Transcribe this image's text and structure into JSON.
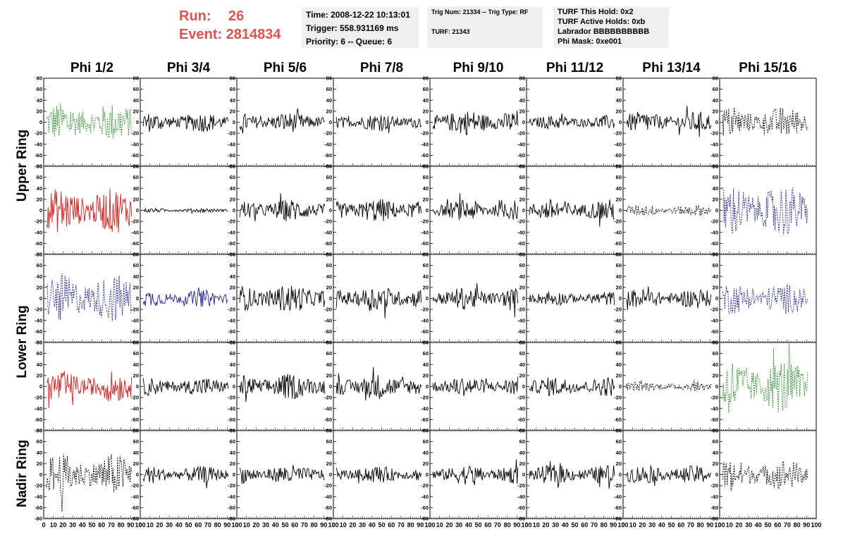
{
  "header": {
    "run_label": "Run:",
    "run_value": "26",
    "event_label": "Event:",
    "event_value": "2814834",
    "time_line": "Time: 2008-12-22 10:13:01",
    "trigger_line": "Trigger: 558.931169 ms",
    "priority_line": "Priority: 6 -- Queue: 6",
    "trig_num_line": "Trig Num: 21334 -- Trig Type: RF",
    "turf_line": "TURF: 21343",
    "turf_hold_line": "TURF This Hold: 0x2",
    "turf_active_line": "TURF Active Holds: 0xb",
    "labrador_line": "Labrador BBBBBBBBBB",
    "phi_mask_line": "Phi Mask: 0xe001"
  },
  "columns": [
    "Phi 1/2",
    "Phi 3/4",
    "Phi 5/6",
    "Phi 7/8",
    "Phi 9/10",
    "Phi 11/12",
    "Phi 13/14",
    "Phi 15/16"
  ],
  "row_groups": [
    "Upper Ring",
    "Lower Ring",
    "Nadir Ring"
  ],
  "colors": {
    "black": "#000000",
    "green": "#2e8b2e",
    "red": "#cc2222",
    "blue": "#22228b"
  },
  "chart_data": {
    "type": "line",
    "description_units": "waveform amplitude vs sample",
    "x_range": [
      0,
      100
    ],
    "y_range": [
      -80,
      80
    ],
    "y_ticks": [
      -80,
      -60,
      -40,
      -20,
      0,
      20,
      40,
      60,
      80
    ],
    "x_ticks": [
      0,
      10,
      20,
      30,
      40,
      50,
      60,
      70,
      80,
      90,
      100
    ],
    "panels": [
      [
        {
          "color": "green",
          "style": "dashed",
          "amp": 28
        },
        {
          "color": "black",
          "style": "solid",
          "amp": 14
        },
        {
          "color": "black",
          "style": "solid",
          "amp": 14
        },
        {
          "color": "black",
          "style": "solid",
          "amp": 12
        },
        {
          "color": "black",
          "style": "solid",
          "amp": 18
        },
        {
          "color": "black",
          "style": "solid",
          "amp": 10
        },
        {
          "color": "black",
          "style": "solid",
          "amp": 15
        },
        {
          "color": "black",
          "style": "dashed",
          "amp": 22
        }
      ],
      [
        {
          "color": "red",
          "style": "solid",
          "amp": 32
        },
        {
          "color": "black",
          "style": "solid",
          "amp": 3
        },
        {
          "color": "black",
          "style": "solid",
          "amp": 16
        },
        {
          "color": "black",
          "style": "solid",
          "amp": 17
        },
        {
          "color": "black",
          "style": "solid",
          "amp": 15
        },
        {
          "color": "black",
          "style": "solid",
          "amp": 16
        },
        {
          "color": "black",
          "style": "dashed",
          "amp": 8
        },
        {
          "color": "blue",
          "style": "dashed",
          "amp": 38
        }
      ],
      [
        {
          "color": "blue",
          "style": "dashed",
          "amp": 35
        },
        {
          "color": "blue",
          "style": "solid",
          "amp": 12
        },
        {
          "color": "black",
          "style": "solid",
          "amp": 20
        },
        {
          "color": "black",
          "style": "solid",
          "amp": 18
        },
        {
          "color": "black",
          "style": "solid",
          "amp": 16
        },
        {
          "color": "black",
          "style": "solid",
          "amp": 10
        },
        {
          "color": "black",
          "style": "solid",
          "amp": 14
        },
        {
          "color": "blue",
          "style": "dashed",
          "amp": 22
        }
      ],
      [
        {
          "color": "red",
          "style": "solid",
          "amp": 22
        },
        {
          "color": "black",
          "style": "solid",
          "amp": 13
        },
        {
          "color": "black",
          "style": "solid",
          "amp": 18
        },
        {
          "color": "black",
          "style": "solid",
          "amp": 18
        },
        {
          "color": "black",
          "style": "solid",
          "amp": 14
        },
        {
          "color": "black",
          "style": "solid",
          "amp": 14
        },
        {
          "color": "black",
          "style": "dashed",
          "amp": 7
        },
        {
          "color": "green",
          "style": "dashed",
          "amp": 40
        }
      ],
      [
        {
          "color": "black",
          "style": "dashed",
          "amp": 30
        },
        {
          "color": "black",
          "style": "solid",
          "amp": 12
        },
        {
          "color": "black",
          "style": "solid",
          "amp": 14
        },
        {
          "color": "black",
          "style": "solid",
          "amp": 12
        },
        {
          "color": "black",
          "style": "solid",
          "amp": 14
        },
        {
          "color": "black",
          "style": "solid",
          "amp": 14
        },
        {
          "color": "black",
          "style": "solid",
          "amp": 13
        },
        {
          "color": "black",
          "style": "dashed",
          "amp": 22
        }
      ]
    ]
  }
}
